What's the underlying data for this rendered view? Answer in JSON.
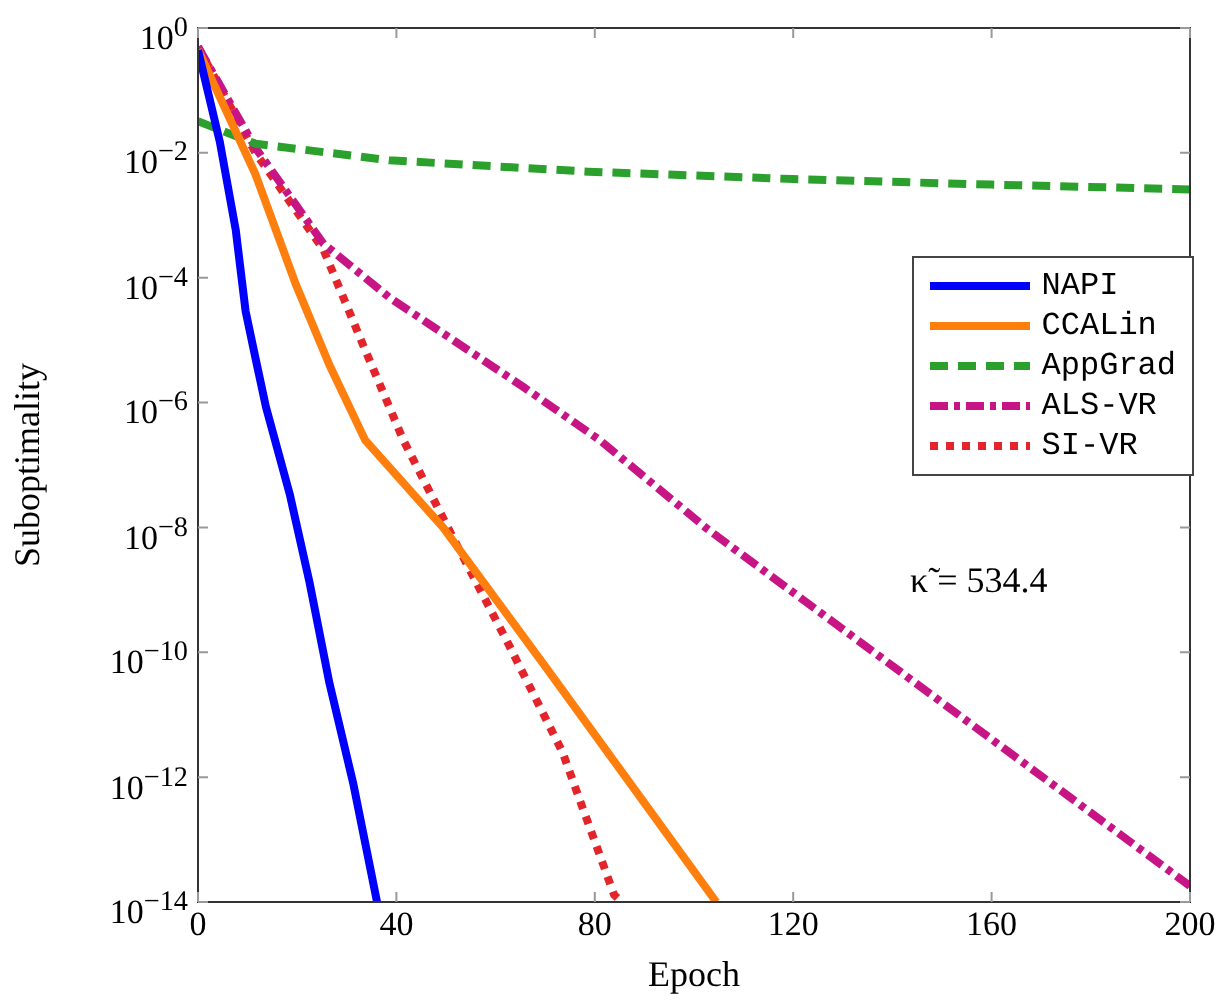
{
  "chart_data": {
    "type": "line",
    "xlabel": "Epoch",
    "ylabel": "Suboptimality",
    "log": "y",
    "xlim": [
      0,
      200
    ],
    "xticks": [
      0,
      40,
      80,
      120,
      160,
      200
    ],
    "ylim": [
      1e-14,
      1
    ],
    "yticks": [
      {
        "value": 1,
        "label": "10$^{0}$"
      },
      {
        "value": 0.01,
        "label": "10$^{−2}$"
      },
      {
        "value": 0.0001,
        "label": "10$^{−4}$"
      },
      {
        "value": 1e-06,
        "label": "10$^{−6}$"
      },
      {
        "value": 1e-08,
        "label": "10$^{−8}$"
      },
      {
        "value": 1e-10,
        "label": "10$^{−10}$"
      },
      {
        "value": 1e-12,
        "label": "10$^{−12}$"
      },
      {
        "value": 1e-14,
        "label": "10$^{−14}$"
      }
    ],
    "grid": false,
    "legend": "right",
    "marker": "none",
    "annotations": [
      "κ̃ = 534.4"
    ],
    "series": [
      {
        "name": "NAPI",
        "color": "#0000ff",
        "line_style": "solid",
        "x": [
          0,
          4.4,
          7.6,
          9.6,
          11.6,
          13.7,
          18.5,
          22.5,
          26.5,
          31.3,
          36.1
        ],
        "values": [
          0.44,
          0.015,
          0.00059,
          2.9e-05,
          5.1e-06,
          8.5e-07,
          3.4e-08,
          1.3e-09,
          3.2e-11,
          7.9e-13,
          1e-14
        ]
      },
      {
        "name": "CCALin",
        "color": "#ff7f0e",
        "line_style": "solid",
        "x": [
          0,
          11.6,
          19.7,
          26.5,
          33.7,
          49.4,
          70.7,
          104.5
        ],
        "values": [
          0.45,
          0.0045,
          7.9e-05,
          4e-06,
          2.5e-07,
          1e-08,
          5e-11,
          1e-14
        ]
      },
      {
        "name": "AppGrad",
        "color": "#2ca02c",
        "line_style": "dashed",
        "x": [
          0,
          11.6,
          38.6,
          78.7,
          120,
          160,
          200
        ],
        "values": [
          0.032,
          0.014,
          0.0076,
          0.005,
          0.0038,
          0.0031,
          0.0026
        ]
      },
      {
        "name": "ALS-VR",
        "color": "#c71585",
        "line_style": "dashdot",
        "x": [
          0,
          11.6,
          25.3,
          38.6,
          65.5,
          81,
          102.8,
          200
        ],
        "values": [
          0.5,
          0.012,
          0.00035,
          4.8e-05,
          1.8e-06,
          2.5e-07,
          9.3e-09,
          1.8e-14
        ]
      },
      {
        "name": "SI-VR",
        "color": "#e3242b",
        "line_style": "dotted",
        "x": [
          0,
          11.6,
          25.3,
          33.3,
          41.4,
          51.8,
          62.7,
          73.5,
          83.9,
          85.5
        ],
        "values": [
          0.5,
          0.01,
          0.00028,
          8.3e-06,
          2.5e-07,
          6e-09,
          1.3e-10,
          2.5e-12,
          1.3e-14,
          1e-14
        ]
      }
    ]
  }
}
